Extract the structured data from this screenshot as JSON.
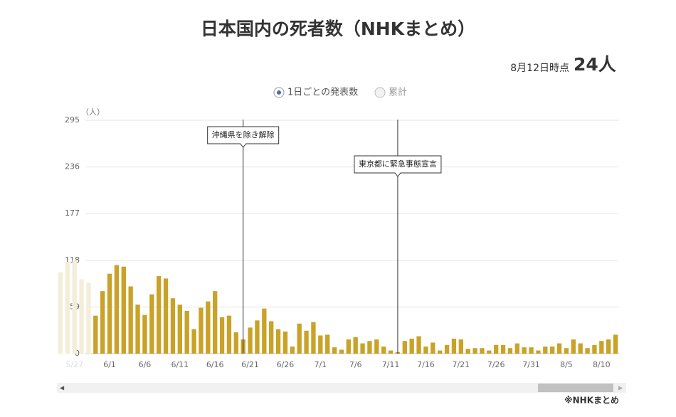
{
  "title": "日本国内の死者数（NHKまとめ）",
  "as_of": "8月12日時点",
  "latest_label": "24人",
  "options": [
    "1日ごとの発表数",
    "累計"
  ],
  "source": "※NHKまとめ",
  "chart_data": {
    "type": "bar",
    "y_unit": "（人）",
    "categories": [
      null,
      null,
      "5/27",
      null,
      null,
      null,
      null,
      "6/1",
      null,
      null,
      null,
      null,
      "6/6",
      null,
      null,
      null,
      null,
      "6/11",
      null,
      null,
      null,
      null,
      "6/16",
      null,
      null,
      null,
      null,
      "6/21",
      null,
      null,
      null,
      null,
      "6/26",
      null,
      null,
      null,
      null,
      "7/1",
      null,
      null,
      null,
      null,
      "7/6",
      null,
      null,
      null,
      null,
      "7/11",
      null,
      null,
      null,
      null,
      "7/16",
      null,
      null,
      null,
      null,
      "7/21",
      null,
      null,
      null,
      null,
      "7/26",
      null,
      null,
      null,
      null,
      "7/31",
      null,
      null,
      null,
      null,
      "8/5",
      null,
      null,
      null,
      null,
      "8/10",
      null,
      null
    ],
    "values": [
      103,
      116,
      118,
      94,
      90,
      48,
      79,
      101,
      112,
      110,
      85,
      62,
      49,
      75,
      98,
      95,
      70,
      62,
      54,
      31,
      58,
      66,
      79,
      46,
      48,
      27,
      18,
      33,
      42,
      57,
      41,
      31,
      28,
      9,
      38,
      29,
      40,
      23,
      24,
      8,
      5,
      18,
      21,
      13,
      16,
      18,
      9,
      4,
      2,
      16,
      19,
      22,
      9,
      14,
      4,
      11,
      19,
      18,
      6,
      7,
      7,
      4,
      11,
      11,
      7,
      13,
      8,
      8,
      4,
      9,
      9,
      13,
      7,
      18,
      13,
      7,
      11,
      16,
      18,
      24
    ],
    "color": "#c9a227",
    "colors": [
      "#f4eed9",
      "#f4eed9",
      "#f4eed9",
      "#f4eed9",
      "#f4eed9",
      "#c9a227",
      "#c9a227",
      "#c9a227",
      "#c9a227",
      "#c9a227",
      "#c9a227",
      "#c9a227",
      "#c9a227",
      "#c9a227",
      "#c9a227",
      "#c9a227",
      "#c9a227",
      "#c9a227",
      "#c9a227",
      "#c9a227",
      "#c9a227",
      "#c9a227",
      "#c9a227",
      "#c9a227",
      "#c9a227",
      "#c9a227",
      "#c9a227",
      "#c9a227",
      "#c9a227",
      "#c9a227",
      "#c9a227",
      "#c9a227",
      "#c9a227",
      "#c9a227",
      "#c9a227",
      "#c9a227",
      "#c9a227",
      "#c9a227",
      "#c9a227",
      "#c9a227",
      "#c9a227",
      "#c9a227",
      "#c9a227",
      "#c9a227",
      "#c9a227",
      "#c9a227",
      "#c9a227",
      "#c9a227",
      "#c9a227",
      "#c9a227",
      "#c9a227",
      "#c9a227",
      "#c9a227",
      "#c9a227",
      "#c9a227",
      "#c9a227",
      "#c9a227",
      "#c9a227",
      "#c9a227",
      "#c9a227",
      "#c9a227",
      "#c9a227",
      "#c9a227",
      "#c9a227",
      "#c9a227",
      "#c9a227",
      "#c9a227",
      "#c9a227",
      "#c9a227",
      "#c9a227",
      "#c9a227",
      "#c9a227",
      "#c9a227",
      "#c9a227",
      "#c9a227",
      "#c9a227",
      "#c9a227",
      "#c9a227",
      "#c9a227",
      "#c9a227"
    ],
    "ylim": [
      0,
      295
    ],
    "yticks": [
      0,
      59,
      118,
      177,
      236,
      295
    ],
    "grid": true,
    "annotations": [
      {
        "text": "沖縄県を除き解除",
        "category_index": 26
      },
      {
        "text": "東京都に緊急事態宣言",
        "category_index": 48
      }
    ]
  }
}
